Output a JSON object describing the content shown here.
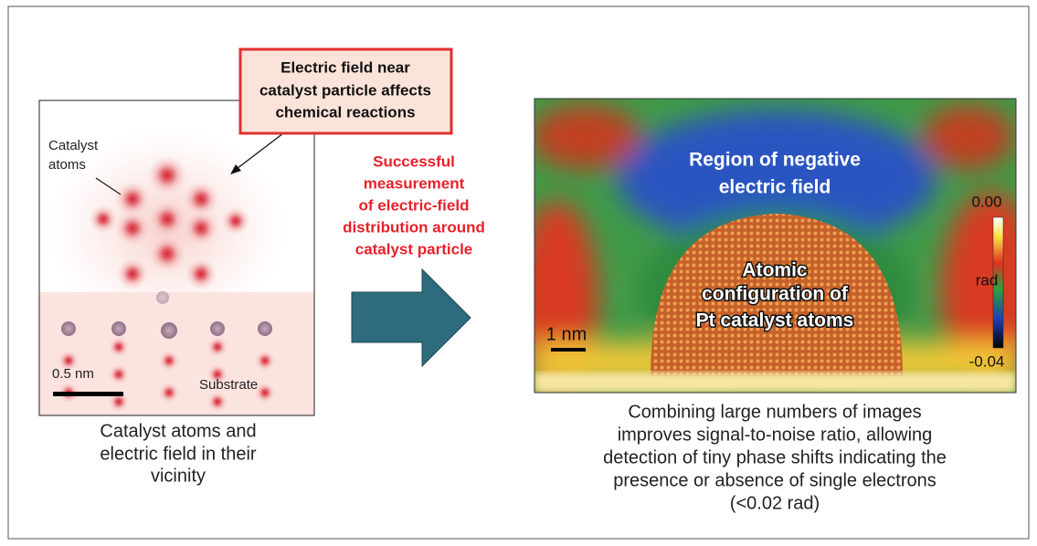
{
  "callout": {
    "lines": [
      "Electric field near",
      "catalyst particle affects",
      "chemical reactions"
    ]
  },
  "left_panel": {
    "atom_label": [
      "Catalyst",
      "atoms"
    ],
    "scale_label": "0.5 nm",
    "substrate_label": "Substrate",
    "caption": [
      "Catalyst atoms and",
      "electric field in their",
      "vicinity"
    ]
  },
  "middle": {
    "lines": [
      "Successful",
      "measurement",
      "of electric-field",
      "distribution around",
      "catalyst particle"
    ]
  },
  "right_panel": {
    "region_label": [
      "Region of negative",
      "electric field"
    ],
    "atom_label": [
      "Atomic",
      "configuration of",
      "Pt catalyst atoms"
    ],
    "scale_label": "1 nm",
    "colorbar": {
      "top": "0.00",
      "unit": "rad",
      "bottom": "-0.04"
    },
    "caption": [
      "Combining large numbers of images",
      "improves signal-to-noise ratio, allowing",
      "detection of tiny phase shifts indicating the",
      "presence or absence of single electrons",
      "(<0.02 rad)"
    ]
  }
}
